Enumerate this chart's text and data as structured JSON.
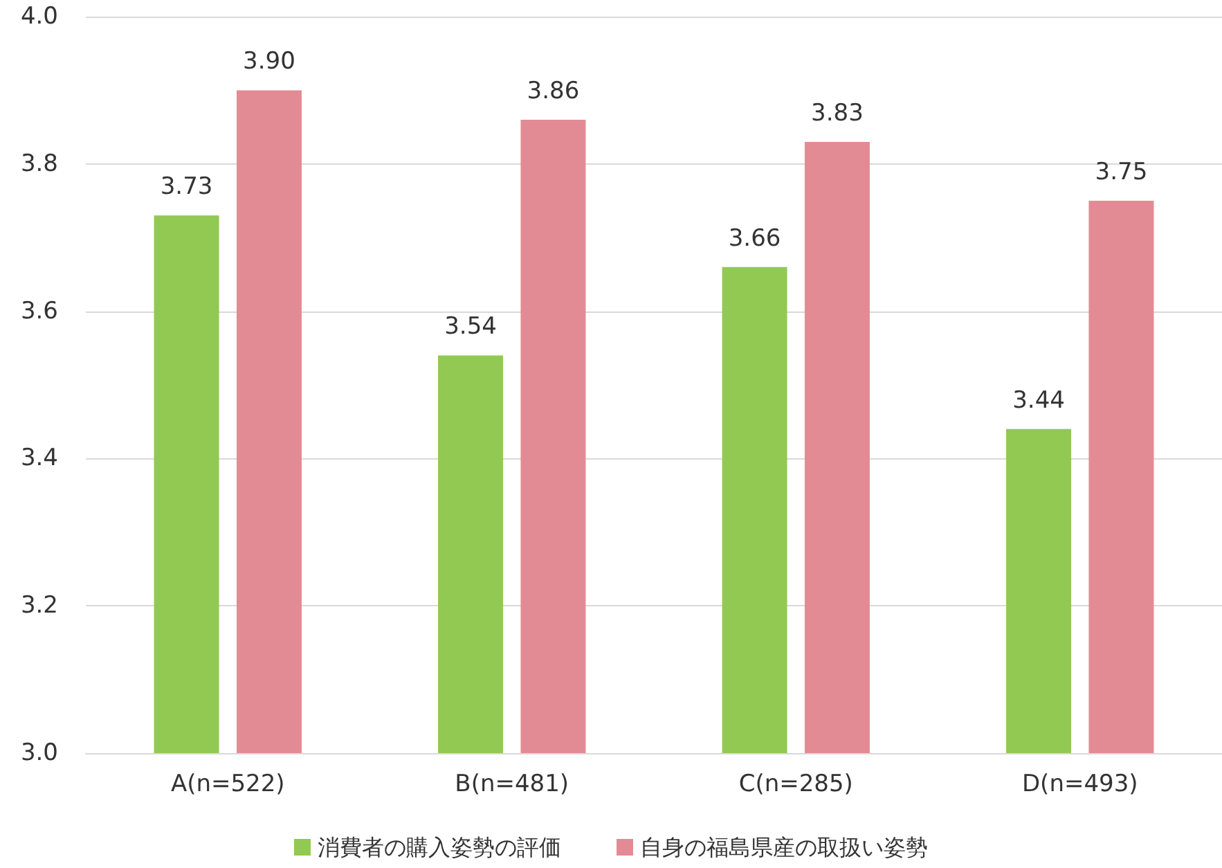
{
  "chart_data": {
    "type": "bar",
    "categories": [
      "A(n=522)",
      "B(n=481)",
      "C(n=285)",
      "D(n=493)"
    ],
    "series": [
      {
        "name": "消費者の購入姿勢の評価",
        "color": "#92c952",
        "values": [
          3.73,
          3.54,
          3.66,
          3.44
        ],
        "value_labels": [
          "3.73",
          "3.54",
          "3.66",
          "3.44"
        ]
      },
      {
        "name": "自身の福島県産の取扱い姿勢",
        "color": "#e38b94",
        "values": [
          3.9,
          3.86,
          3.83,
          3.75
        ],
        "value_labels": [
          "3.90",
          "3.86",
          "3.83",
          "3.75"
        ]
      }
    ],
    "ylim": [
      3.0,
      4.0
    ],
    "yticks": [
      {
        "value": 3.0,
        "label": "3.0"
      },
      {
        "value": 3.2,
        "label": "3.2"
      },
      {
        "value": 3.4,
        "label": "3.4"
      },
      {
        "value": 3.6,
        "label": "3.6"
      },
      {
        "value": 3.8,
        "label": "3.8"
      },
      {
        "value": 4.0,
        "label": "4.0"
      }
    ],
    "grid": "y",
    "legend": "bottom"
  }
}
